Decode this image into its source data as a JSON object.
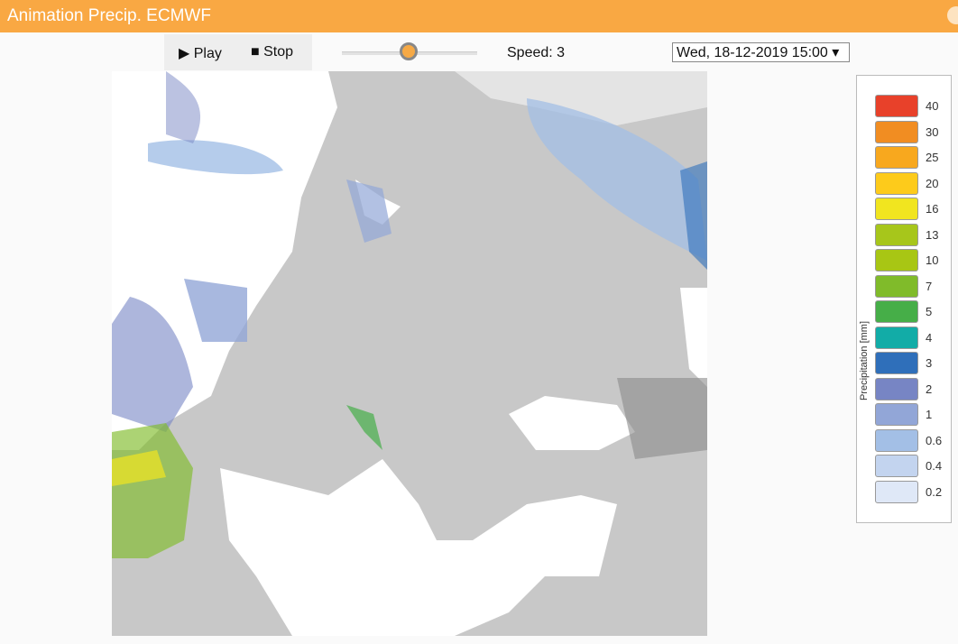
{
  "window": {
    "title": "Animation Precip. ECMWF"
  },
  "controls": {
    "play_label": "▶ Play",
    "stop_label": "■ Stop",
    "speed_label": "Speed: 3",
    "speed_value": 3,
    "datetime_selected": "Wed, 18-12-2019 15:00 ▾"
  },
  "legend": {
    "title": "Precipitation [mm]",
    "items": [
      {
        "label": "40",
        "color": "#e8412a"
      },
      {
        "label": "30",
        "color": "#f18d22"
      },
      {
        "label": "25",
        "color": "#f8a81e"
      },
      {
        "label": "20",
        "color": "#fdcb1b"
      },
      {
        "label": "16",
        "color": "#f1e51f"
      },
      {
        "label": "13",
        "color": "#a7c61b"
      },
      {
        "label": "10",
        "color": "#a8c614"
      },
      {
        "label": "7",
        "color": "#80bb2a"
      },
      {
        "label": "5",
        "color": "#46ae48"
      },
      {
        "label": "4",
        "color": "#12aca7"
      },
      {
        "label": "3",
        "color": "#2f6fba"
      },
      {
        "label": "2",
        "color": "#7785c4"
      },
      {
        "label": "1",
        "color": "#92a6d7"
      },
      {
        "label": "0.6",
        "color": "#a3bfe6"
      },
      {
        "label": "0.4",
        "color": "#c3d4ef"
      },
      {
        "label": "0.2",
        "color": "#dfe8f7"
      }
    ]
  }
}
